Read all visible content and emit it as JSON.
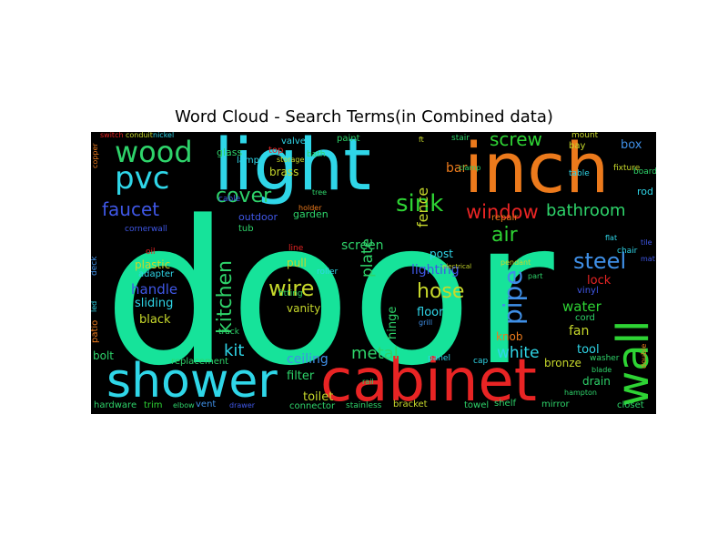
{
  "title": "Word Cloud - Search Terms(in Combined data)",
  "background": "#000000",
  "words": [
    {
      "text": "door",
      "color": "#16e39a"
    },
    {
      "text": "light",
      "color": "#2fd6e8"
    },
    {
      "text": "inch",
      "color": "#ec7a1c"
    },
    {
      "text": "cabinet",
      "color": "#e82424"
    },
    {
      "text": "shower",
      "color": "#2fd6e8"
    },
    {
      "text": "wall",
      "color": "#2ed334"
    },
    {
      "text": "wood",
      "color": "#2ed36a"
    },
    {
      "text": "pvc",
      "color": "#2fd6e8"
    },
    {
      "text": "cover",
      "color": "#2ed36a"
    },
    {
      "text": "faucet",
      "color": "#3f57e6"
    },
    {
      "text": "sink",
      "color": "#2ed334"
    },
    {
      "text": "window",
      "color": "#e82424"
    },
    {
      "text": "bathroom",
      "color": "#2ed36a"
    },
    {
      "text": "screw",
      "color": "#2ed334"
    },
    {
      "text": "fence",
      "color": "#c7d82b"
    },
    {
      "text": "bar",
      "color": "#ec7a1c"
    },
    {
      "text": "kitchen",
      "color": "#2ed36a"
    },
    {
      "text": "air",
      "color": "#2ed334"
    },
    {
      "text": "steel",
      "color": "#3f8fe6"
    },
    {
      "text": "pipe",
      "color": "#3f8fe6"
    },
    {
      "text": "hose",
      "color": "#c7d82b"
    },
    {
      "text": "wire",
      "color": "#c7d82b"
    },
    {
      "text": "plate",
      "color": "#2ed36a"
    },
    {
      "text": "screen",
      "color": "#2ed36a"
    },
    {
      "text": "handle",
      "color": "#3f57e6"
    },
    {
      "text": "plastic",
      "color": "#c7d82b"
    },
    {
      "text": "sliding",
      "color": "#2fd6e8"
    },
    {
      "text": "black",
      "color": "#c7d82b"
    },
    {
      "text": "kit",
      "color": "#2fd6e8"
    },
    {
      "text": "metal",
      "color": "#2ed36a"
    },
    {
      "text": "white",
      "color": "#2fd6e8"
    },
    {
      "text": "water",
      "color": "#2ed334"
    },
    {
      "text": "lighting",
      "color": "#3f57e6"
    },
    {
      "text": "floor",
      "color": "#2fd6e8"
    },
    {
      "text": "fan",
      "color": "#c7d82b"
    },
    {
      "text": "lock",
      "color": "#e82424"
    },
    {
      "text": "hinge",
      "color": "#2ed36a"
    },
    {
      "text": "tool",
      "color": "#2fd6e8"
    },
    {
      "text": "knob",
      "color": "#ec7a1c"
    },
    {
      "text": "box",
      "color": "#3f8fe6"
    },
    {
      "text": "ceiling",
      "color": "#3f8fe6"
    },
    {
      "text": "filter",
      "color": "#2ed36a"
    },
    {
      "text": "toilet",
      "color": "#c7d82b"
    },
    {
      "text": "vanity",
      "color": "#c7d82b"
    },
    {
      "text": "pull",
      "color": "#c7d82b"
    },
    {
      "text": "bolt",
      "color": "#2ed36a"
    },
    {
      "text": "outdoor",
      "color": "#3f57e6"
    },
    {
      "text": "garden",
      "color": "#2ed36a"
    },
    {
      "text": "brass",
      "color": "#c7d82b"
    },
    {
      "text": "cornerwall",
      "color": "#3f57e6"
    },
    {
      "text": "bronze",
      "color": "#c7d82b"
    },
    {
      "text": "drain",
      "color": "#2ed36a"
    },
    {
      "text": "post",
      "color": "#2fd6e8"
    },
    {
      "text": "cord",
      "color": "#2ed36a"
    },
    {
      "text": "vinyl",
      "color": "#3f57e6"
    },
    {
      "text": "rod",
      "color": "#2fd6e8"
    },
    {
      "text": "repair",
      "color": "#ec7a1c"
    },
    {
      "text": "adapter",
      "color": "#2fd6e8"
    },
    {
      "text": "replacement",
      "color": "#2ed36a"
    },
    {
      "text": "hardware",
      "color": "#2ed36a"
    },
    {
      "text": "trim",
      "color": "#2ed334"
    },
    {
      "text": "vent",
      "color": "#3f8fe6"
    },
    {
      "text": "connector",
      "color": "#2ed36a"
    },
    {
      "text": "stainless",
      "color": "#2ed36a"
    },
    {
      "text": "bracket",
      "color": "#c7d82b"
    },
    {
      "text": "towel",
      "color": "#2ed36a"
    },
    {
      "text": "shelf",
      "color": "#2ed36a"
    },
    {
      "text": "mirror",
      "color": "#2ed36a"
    },
    {
      "text": "closet",
      "color": "#2ed36a"
    },
    {
      "text": "glass",
      "color": "#2ed36a"
    },
    {
      "text": "lamp",
      "color": "#2fd6e8"
    },
    {
      "text": "tub",
      "color": "#2ed36a"
    },
    {
      "text": "cable",
      "color": "#3f57e6"
    },
    {
      "text": "valve",
      "color": "#2fd6e8"
    },
    {
      "text": "paint",
      "color": "#2ed36a"
    },
    {
      "text": "stair",
      "color": "#2ed36a"
    },
    {
      "text": "mount",
      "color": "#c7d82b"
    },
    {
      "text": "bay",
      "color": "#c7d82b"
    },
    {
      "text": "table",
      "color": "#2fd6e8"
    },
    {
      "text": "board",
      "color": "#2ed36a"
    },
    {
      "text": "fixture",
      "color": "#c7d82b"
    },
    {
      "text": "top",
      "color": "#e82424"
    },
    {
      "text": "bath",
      "color": "#2ed36a"
    },
    {
      "text": "storage",
      "color": "#c7d82b"
    },
    {
      "text": "clamp",
      "color": "#2ed36a"
    },
    {
      "text": "roller",
      "color": "#2fd6e8"
    },
    {
      "text": "line",
      "color": "#e82424"
    },
    {
      "text": "fitting",
      "color": "#2ed36a"
    },
    {
      "text": "patio",
      "color": "#ec7a1c"
    },
    {
      "text": "track",
      "color": "#2ed36a"
    },
    {
      "text": "panel",
      "color": "#2fd6e8"
    },
    {
      "text": "cap",
      "color": "#2fd6e8"
    },
    {
      "text": "washer",
      "color": "#2ed36a"
    },
    {
      "text": "grill",
      "color": "#3f8fe6"
    },
    {
      "text": "part",
      "color": "#2ed36a"
    },
    {
      "text": "oil",
      "color": "#e82424"
    },
    {
      "text": "chair",
      "color": "#2fd6e8"
    },
    {
      "text": "deck",
      "color": "#3f8fe6"
    },
    {
      "text": "led",
      "color": "#2fd6e8"
    },
    {
      "text": "switch",
      "color": "#e82424"
    },
    {
      "text": "conduit",
      "color": "#c7d82b"
    },
    {
      "text": "nickel",
      "color": "#2fd6e8"
    },
    {
      "text": "copper",
      "color": "#ec7a1c"
    },
    {
      "text": "blade",
      "color": "#2ed36a"
    },
    {
      "text": "pendant",
      "color": "#c7d82b"
    },
    {
      "text": "tile",
      "color": "#3f57e6"
    },
    {
      "text": "hampton",
      "color": "#2ed36a"
    },
    {
      "text": "double",
      "color": "#ec7a1c"
    },
    {
      "text": "elbow",
      "color": "#2ed36a"
    },
    {
      "text": "drawer",
      "color": "#3f57e6"
    },
    {
      "text": "flat",
      "color": "#2fd6e8"
    },
    {
      "text": "tree",
      "color": "#2ed36a"
    },
    {
      "text": "holder",
      "color": "#ec7a1c"
    },
    {
      "text": "rail",
      "color": "#2ed36a"
    },
    {
      "text": "electrical",
      "color": "#c7d82b"
    },
    {
      "text": "ft",
      "color": "#c7d82b"
    },
    {
      "text": "mat",
      "color": "#3f57e6"
    }
  ]
}
